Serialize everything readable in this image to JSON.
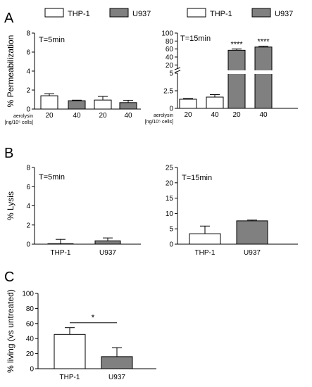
{
  "legend": {
    "items": [
      {
        "label": "THP-1",
        "color": "#ffffff"
      },
      {
        "label": "U937",
        "color": "#808080"
      }
    ]
  },
  "panels": {
    "A": "A",
    "B": "B",
    "C": "C"
  },
  "chart_data": [
    {
      "id": "A1",
      "type": "bar",
      "annotation": "T=5min",
      "ylabel": "% Permeabilization",
      "ylim": [
        0,
        8
      ],
      "yticks": [
        "0",
        "2",
        "4",
        "6",
        "8"
      ],
      "x_caption": [
        "aerolysin",
        "[ng/10⁵ cells]"
      ],
      "categories": [
        "20",
        "40",
        "20",
        "40"
      ],
      "values": [
        1.4,
        0.88,
        0.95,
        0.68
      ],
      "errors": [
        0.22,
        0.06,
        0.38,
        0.25
      ],
      "colors": [
        "#ffffff",
        "#808080",
        "#ffffff",
        "#808080"
      ],
      "significance": [
        "",
        "",
        "",
        ""
      ]
    },
    {
      "id": "A2",
      "type": "bar",
      "annotation": "T=15min",
      "ylabel": "",
      "broken_axis": true,
      "ylim_lower": [
        0,
        5
      ],
      "ylim_upper": [
        10,
        100
      ],
      "yticks_lower": [
        "0",
        "2.5",
        "5"
      ],
      "yticks_upper": [
        "20",
        "40",
        "60",
        "80",
        "100"
      ],
      "x_caption": [
        "aerolysin",
        "[ng/10⁵ cells]"
      ],
      "categories": [
        "20",
        "40",
        "20",
        "40"
      ],
      "values": [
        1.3,
        1.6,
        57,
        65
      ],
      "errors": [
        0.1,
        0.35,
        3,
        2
      ],
      "colors": [
        "#ffffff",
        "#ffffff",
        "#808080",
        "#808080"
      ],
      "significance": [
        "",
        "",
        "****",
        "****"
      ]
    },
    {
      "id": "B1",
      "type": "bar",
      "annotation": "T=5min",
      "ylabel": "% Lysis",
      "ylim": [
        0,
        8
      ],
      "yticks": [
        "0",
        "2",
        "4",
        "6",
        "8"
      ],
      "categories": [
        "THP-1",
        "U937"
      ],
      "values": [
        0.05,
        0.35
      ],
      "errors": [
        0.45,
        0.3
      ],
      "colors": [
        "#ffffff",
        "#808080"
      ]
    },
    {
      "id": "B2",
      "type": "bar",
      "annotation": "T=15min",
      "ylabel": "",
      "ylim": [
        0,
        25
      ],
      "yticks": [
        "0",
        "5",
        "10",
        "15",
        "20",
        "25"
      ],
      "categories": [
        "THP-1",
        "U937"
      ],
      "values": [
        3.4,
        7.6
      ],
      "errors": [
        2.5,
        0.25
      ],
      "colors": [
        "#ffffff",
        "#808080"
      ]
    },
    {
      "id": "C",
      "type": "bar",
      "annotation": "",
      "ylabel": "% living (vs untreated)",
      "ylim": [
        0,
        100
      ],
      "yticks": [
        "0",
        "20",
        "40",
        "60",
        "80",
        "100"
      ],
      "categories": [
        "THP-1",
        "U937"
      ],
      "values": [
        45.5,
        16
      ],
      "errors": [
        9,
        12
      ],
      "colors": [
        "#ffffff",
        "#808080"
      ],
      "bracket": "*"
    }
  ]
}
